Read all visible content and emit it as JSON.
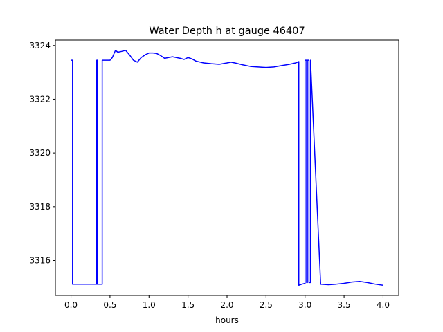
{
  "chart_data": {
    "type": "line",
    "title": "Water Depth h at gauge 46407",
    "xlabel": "hours",
    "ylabel": "",
    "xlim": [
      -0.2,
      4.2
    ],
    "ylim": [
      3314.7,
      3324.2
    ],
    "xticks": [
      0.0,
      0.5,
      1.0,
      1.5,
      2.0,
      2.5,
      3.0,
      3.5,
      4.0
    ],
    "xtick_labels": [
      "0.0",
      "0.5",
      "1.0",
      "1.5",
      "2.0",
      "2.5",
      "3.0",
      "3.5",
      "4.0"
    ],
    "yticks": [
      3316,
      3318,
      3320,
      3322,
      3324
    ],
    "ytick_labels": [
      "3316",
      "3318",
      "3320",
      "3322",
      "3324"
    ],
    "grid": false,
    "series": [
      {
        "color": "#0000ff",
        "x": [
          0.0,
          0.02,
          0.02,
          0.33,
          0.33,
          0.34,
          0.34,
          0.4,
          0.4,
          0.5,
          0.53,
          0.57,
          0.6,
          0.65,
          0.7,
          0.75,
          0.8,
          0.85,
          0.9,
          0.95,
          1.0,
          1.05,
          1.1,
          1.15,
          1.2,
          1.25,
          1.3,
          1.35,
          1.4,
          1.45,
          1.5,
          1.55,
          1.6,
          1.7,
          1.8,
          1.9,
          2.0,
          2.05,
          2.1,
          2.2,
          2.3,
          2.4,
          2.5,
          2.6,
          2.7,
          2.8,
          2.88,
          2.92,
          2.92,
          2.96,
          3.0,
          3.0,
          3.02,
          3.02,
          3.03,
          3.03,
          3.05,
          3.05,
          3.07,
          3.07,
          3.2,
          3.3,
          3.4,
          3.5,
          3.6,
          3.7,
          3.8,
          3.9,
          4.0
        ],
        "y": [
          3323.45,
          3323.45,
          3315.12,
          3315.12,
          3323.45,
          3323.45,
          3315.12,
          3315.12,
          3323.45,
          3323.45,
          3323.55,
          3323.82,
          3323.75,
          3323.78,
          3323.82,
          3323.65,
          3323.45,
          3323.38,
          3323.55,
          3323.65,
          3323.72,
          3323.72,
          3323.7,
          3323.62,
          3323.52,
          3323.55,
          3323.58,
          3323.55,
          3323.52,
          3323.48,
          3323.55,
          3323.5,
          3323.42,
          3323.35,
          3323.32,
          3323.3,
          3323.35,
          3323.38,
          3323.35,
          3323.28,
          3323.22,
          3323.2,
          3323.18,
          3323.2,
          3323.25,
          3323.3,
          3323.35,
          3323.4,
          3315.08,
          3315.12,
          3315.15,
          3323.45,
          3323.45,
          3315.18,
          3315.18,
          3323.45,
          3323.45,
          3315.18,
          3315.18,
          3323.45,
          3315.12,
          3315.1,
          3315.12,
          3315.15,
          3315.2,
          3315.22,
          3315.18,
          3315.12,
          3315.08
        ]
      }
    ]
  }
}
